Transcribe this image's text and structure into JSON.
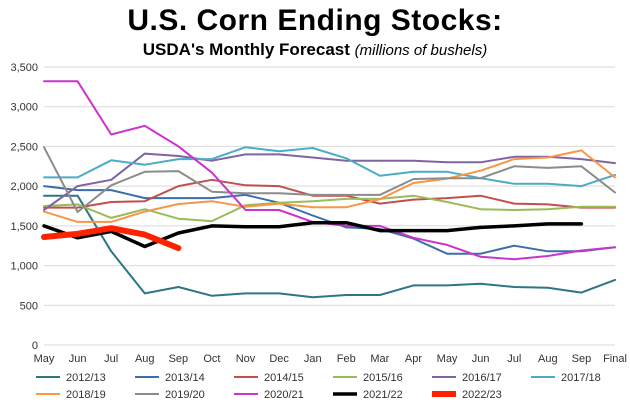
{
  "chart_data": {
    "type": "line",
    "title": "U.S. Corn Ending Stocks:",
    "subtitle": "USDA's Monthly Forecast",
    "unit_note": "(millions of bushels)",
    "xlabel": "",
    "ylabel": "",
    "categories": [
      "May",
      "Jun",
      "Jul",
      "Aug",
      "Sep",
      "Oct",
      "Nov",
      "Dec",
      "Jan",
      "Feb",
      "Mar",
      "Apr",
      "May",
      "Jun",
      "Jul",
      "Aug",
      "Sep",
      "Final"
    ],
    "ylim": [
      0,
      3500
    ],
    "yticks": [
      0,
      500,
      1000,
      1500,
      2000,
      2500,
      3000,
      3500
    ],
    "ytick_labels": [
      "0",
      "500",
      "1,000",
      "1,500",
      "2,000",
      "2,500",
      "3,000",
      "3,500"
    ],
    "grid": "horizontal",
    "legend_position": "bottom",
    "series": [
      {
        "name": "2012/13",
        "color": "#2e7585",
        "width": 2,
        "values": [
          1880,
          1880,
          1180,
          650,
          730,
          620,
          650,
          650,
          600,
          630,
          630,
          750,
          750,
          770,
          730,
          720,
          660,
          820
        ]
      },
      {
        "name": "2013/14",
        "color": "#3b6eaa",
        "width": 2,
        "values": [
          2000,
          1950,
          1950,
          1850,
          1850,
          1850,
          1890,
          1790,
          1630,
          1480,
          1460,
          1340,
          1150,
          1150,
          1250,
          1180,
          1180,
          1230
        ]
      },
      {
        "name": "2014/15",
        "color": "#c0504d",
        "width": 2,
        "values": [
          1730,
          1730,
          1800,
          1810,
          2000,
          2080,
          2010,
          2000,
          1880,
          1880,
          1780,
          1830,
          1850,
          1880,
          1780,
          1770,
          1730,
          1730
        ]
      },
      {
        "name": "2015/16",
        "color": "#9bbb59",
        "width": 2,
        "values": [
          1750,
          1770,
          1600,
          1710,
          1590,
          1560,
          1760,
          1790,
          1810,
          1840,
          1840,
          1880,
          1800,
          1710,
          1700,
          1710,
          1740,
          1740
        ]
      },
      {
        "name": "2016/17",
        "color": "#8064a2",
        "width": 2,
        "values": [
          1700,
          2000,
          2080,
          2410,
          2380,
          2320,
          2400,
          2400,
          2360,
          2320,
          2320,
          2320,
          2300,
          2300,
          2370,
          2370,
          2340,
          2290
        ]
      },
      {
        "name": "2017/18",
        "color": "#4bacc6",
        "width": 2,
        "values": [
          2110,
          2110,
          2325,
          2270,
          2340,
          2340,
          2490,
          2440,
          2480,
          2350,
          2130,
          2180,
          2180,
          2100,
          2030,
          2030,
          2000,
          2140
        ]
      },
      {
        "name": "2018/19",
        "color": "#f79646",
        "width": 2,
        "values": [
          1680,
          1550,
          1550,
          1680,
          1775,
          1810,
          1740,
          1780,
          1735,
          1735,
          1835,
          2040,
          2095,
          2195,
          2340,
          2360,
          2450,
          2110
        ]
      },
      {
        "name": "2019/20",
        "color": "#8c8c8c",
        "width": 2,
        "values": [
          2490,
          1675,
          2010,
          2180,
          2190,
          1930,
          1910,
          1910,
          1890,
          1890,
          1890,
          2090,
          2100,
          2100,
          2250,
          2230,
          2250,
          1920
        ]
      },
      {
        "name": "2020/21",
        "color": "#cc33cc",
        "width": 2,
        "values": [
          3320,
          3320,
          2650,
          2760,
          2500,
          2170,
          1700,
          1700,
          1550,
          1500,
          1500,
          1350,
          1260,
          1110,
          1080,
          1120,
          1190,
          1230
        ]
      },
      {
        "name": "2021/22",
        "color": "#000000",
        "width": 3.5,
        "values": [
          1500,
          1350,
          1430,
          1240,
          1410,
          1500,
          1490,
          1490,
          1540,
          1540,
          1440,
          1440,
          1440,
          1480,
          1500,
          1525,
          1525,
          null
        ]
      },
      {
        "name": "2022/23",
        "color": "#ff2200",
        "width": 6,
        "values": [
          1360,
          1400,
          1470,
          1390,
          1220,
          null,
          null,
          null,
          null,
          null,
          null,
          null,
          null,
          null,
          null,
          null,
          null,
          null
        ]
      }
    ]
  }
}
